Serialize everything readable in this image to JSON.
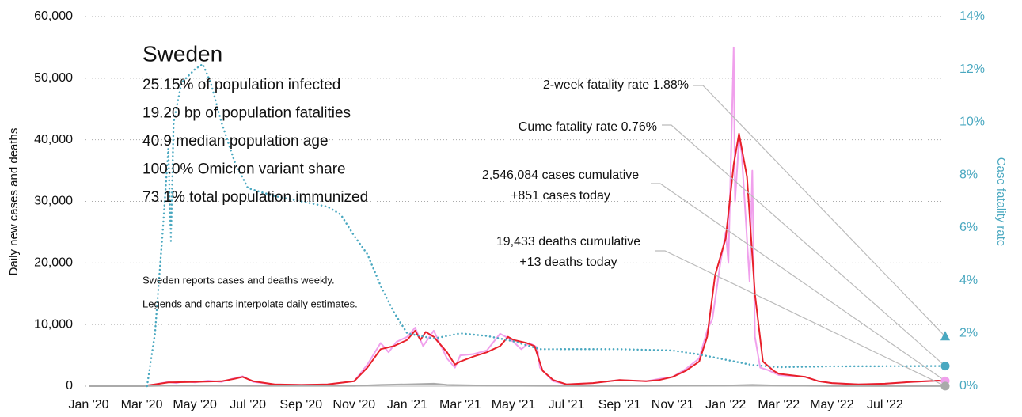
{
  "chart_data": {
    "type": "line",
    "ylabel": "Daily new cases and deaths",
    "y2label": "Case fatality rate",
    "xlim": [
      0,
      32.15
    ],
    "xticks": [
      {
        "value": 0,
        "label": "Jan '20"
      },
      {
        "value": 2,
        "label": "Mar '20"
      },
      {
        "value": 4,
        "label": "May '20"
      },
      {
        "value": 6,
        "label": "Jul '20"
      },
      {
        "value": 8,
        "label": "Sep '20"
      },
      {
        "value": 10,
        "label": "Nov '20"
      },
      {
        "value": 12,
        "label": "Jan '21"
      },
      {
        "value": 14,
        "label": "Mar '21"
      },
      {
        "value": 16,
        "label": "May '21"
      },
      {
        "value": 18,
        "label": "Jul '21"
      },
      {
        "value": 20,
        "label": "Sep '21"
      },
      {
        "value": 22,
        "label": "Nov '21"
      },
      {
        "value": 24,
        "label": "Jan '22"
      },
      {
        "value": 26,
        "label": "Mar '22"
      },
      {
        "value": 28,
        "label": "May '22"
      },
      {
        "value": 30,
        "label": "Jul '22"
      }
    ],
    "ylim": [
      0,
      60000
    ],
    "yticks": [
      {
        "value": 0,
        "label": "0"
      },
      {
        "value": 10000,
        "label": "10,000"
      },
      {
        "value": 20000,
        "label": "20,000"
      },
      {
        "value": 30000,
        "label": "30,000"
      },
      {
        "value": 40000,
        "label": "40,000"
      },
      {
        "value": 50000,
        "label": "50,000"
      },
      {
        "value": 60000,
        "label": "60,000"
      }
    ],
    "y2lim": [
      0,
      14
    ],
    "y2ticks": [
      {
        "value": 0,
        "label": "0%"
      },
      {
        "value": 2,
        "label": "2%"
      },
      {
        "value": 4,
        "label": "4%"
      },
      {
        "value": 6,
        "label": "6%"
      },
      {
        "value": 8,
        "label": "8%"
      },
      {
        "value": 10,
        "label": "10%"
      },
      {
        "value": 12,
        "label": "12%"
      },
      {
        "value": 14,
        "label": "14%"
      }
    ],
    "grid": true,
    "series": [
      {
        "color": "#f0a0ec",
        "style": "solid",
        "x": [
          0,
          2,
          2.5,
          3,
          3.3,
          3.6,
          4,
          4.5,
          5,
          5.5,
          5.8,
          6.2,
          7,
          8,
          9,
          10,
          10.5,
          11,
          11.3,
          11.6,
          12,
          12.3,
          12.6,
          13,
          13.5,
          13.8,
          14,
          14.5,
          15,
          15.5,
          15.8,
          16,
          16.3,
          16.6,
          16.9,
          17,
          17.5,
          18,
          19,
          20,
          21,
          21.5,
          22,
          22.5,
          23,
          23.3,
          23.5,
          23.8,
          24,
          24.1,
          24.3,
          24.35,
          24.5,
          24.6,
          24.9,
          25,
          25.1,
          25.3,
          25.6,
          26,
          27,
          27.5,
          28,
          29,
          30,
          31,
          32,
          32.15
        ],
        "values": [
          0,
          0,
          300,
          700,
          500,
          800,
          600,
          900,
          700,
          1300,
          1600,
          700,
          300,
          200,
          300,
          800,
          3500,
          7000,
          5500,
          7200,
          8000,
          9500,
          6500,
          9000,
          4500,
          3000,
          5000,
          5200,
          5800,
          8500,
          7800,
          7200,
          6000,
          7000,
          6300,
          3000,
          800,
          300,
          500,
          1000,
          800,
          1200,
          1500,
          2800,
          4500,
          9000,
          11000,
          20000,
          25000,
          20000,
          55000,
          30000,
          40000,
          38000,
          17000,
          35000,
          8000,
          3000,
          2600,
          1800,
          1500,
          800,
          500,
          300,
          400,
          700,
          900,
          851
        ]
      },
      {
        "color": "#e8202a",
        "style": "solid",
        "x": [
          0,
          2,
          2.5,
          3,
          4,
          5,
          5.5,
          5.8,
          6.2,
          7,
          8,
          9,
          10,
          10.5,
          11,
          11.5,
          12,
          12.3,
          12.5,
          12.7,
          13,
          13.5,
          13.8,
          14,
          14.5,
          15,
          15.5,
          15.8,
          16,
          16.5,
          16.8,
          17.1,
          17.5,
          18,
          19,
          20,
          21,
          21.5,
          22,
          22.5,
          23,
          23.3,
          23.6,
          24,
          24.3,
          24.5,
          24.8,
          25.1,
          25.4,
          25.8,
          26,
          27,
          27.5,
          28,
          29,
          30,
          31,
          32,
          32.15
        ],
        "values": [
          0,
          0,
          300,
          600,
          700,
          800,
          1200,
          1500,
          800,
          300,
          200,
          300,
          800,
          3000,
          6000,
          6500,
          7500,
          9000,
          7500,
          8800,
          8000,
          5500,
          3500,
          4000,
          4800,
          5500,
          6500,
          8000,
          7500,
          7000,
          6500,
          2500,
          1000,
          300,
          500,
          1000,
          800,
          1000,
          1500,
          2500,
          4000,
          8000,
          18000,
          24000,
          36000,
          41000,
          34000,
          15000,
          4000,
          2500,
          2000,
          1500,
          800,
          500,
          300,
          400,
          700,
          900,
          851
        ]
      },
      {
        "color": "#aaaaaa",
        "style": "solid",
        "x": [
          0,
          2,
          3,
          4,
          5,
          6,
          10,
          11,
          12,
          13,
          13.5,
          15,
          17,
          20,
          24,
          25,
          26,
          28,
          32.15
        ],
        "values": [
          0,
          0,
          100,
          100,
          80,
          50,
          50,
          200,
          300,
          400,
          200,
          100,
          50,
          20,
          100,
          200,
          100,
          30,
          13
        ]
      },
      {
        "color": "#4aa8c0",
        "style": "dotted",
        "axis": "y2",
        "x": [
          2.2,
          2.5,
          2.8,
          3,
          3.1,
          3.2,
          3.5,
          4,
          4.3,
          4.6,
          5,
          5.5,
          6,
          7,
          8,
          9,
          9.5,
          10,
          10.5,
          11,
          11.5,
          12,
          12.5,
          13,
          14,
          15,
          16,
          17,
          18,
          20,
          22,
          23,
          24,
          25,
          26,
          28,
          32.15
        ],
        "values": [
          0,
          2,
          6,
          9,
          5.5,
          10,
          11.5,
          12,
          12.2,
          11.5,
          10,
          8.5,
          7.5,
          7.2,
          7,
          6.8,
          6.5,
          5.7,
          5,
          3.8,
          2.8,
          2,
          1.9,
          1.8,
          2,
          1.9,
          1.7,
          1.4,
          1.4,
          1.4,
          1.35,
          1.2,
          1.0,
          0.8,
          0.72,
          0.75,
          0.76
        ]
      }
    ],
    "info": {
      "title": "Sweden",
      "lines": [
        "25.15% of population infected",
        "19.20 bp of population fatalities",
        "40.9 median population age",
        "100.0% Omicron variant share",
        "73.1% total population immunized"
      ]
    },
    "notes": [
      "Sweden reports cases and deaths weekly.",
      "Legends and charts interpolate daily estimates."
    ],
    "annotations": [
      {
        "lines": [
          "2-week fatality rate 1.88%"
        ],
        "value": 1.88,
        "axis": "y2",
        "marker": "triangle",
        "color": "#4aa8c0"
      },
      {
        "lines": [
          "Cume fatality rate 0.76%"
        ],
        "value": 0.76,
        "axis": "y2",
        "marker": "circle",
        "color": "#4aa8c0"
      },
      {
        "lines": [
          "2,546,084 cases cumulative",
          "+851 cases today"
        ],
        "value": 851,
        "axis": "y",
        "marker": "circle",
        "color": "#f0a0ec"
      },
      {
        "lines": [
          "19,433 deaths cumulative",
          "+13 deaths today"
        ],
        "value": 13,
        "axis": "y",
        "marker": "circle",
        "color": "#aaaaaa"
      }
    ]
  }
}
